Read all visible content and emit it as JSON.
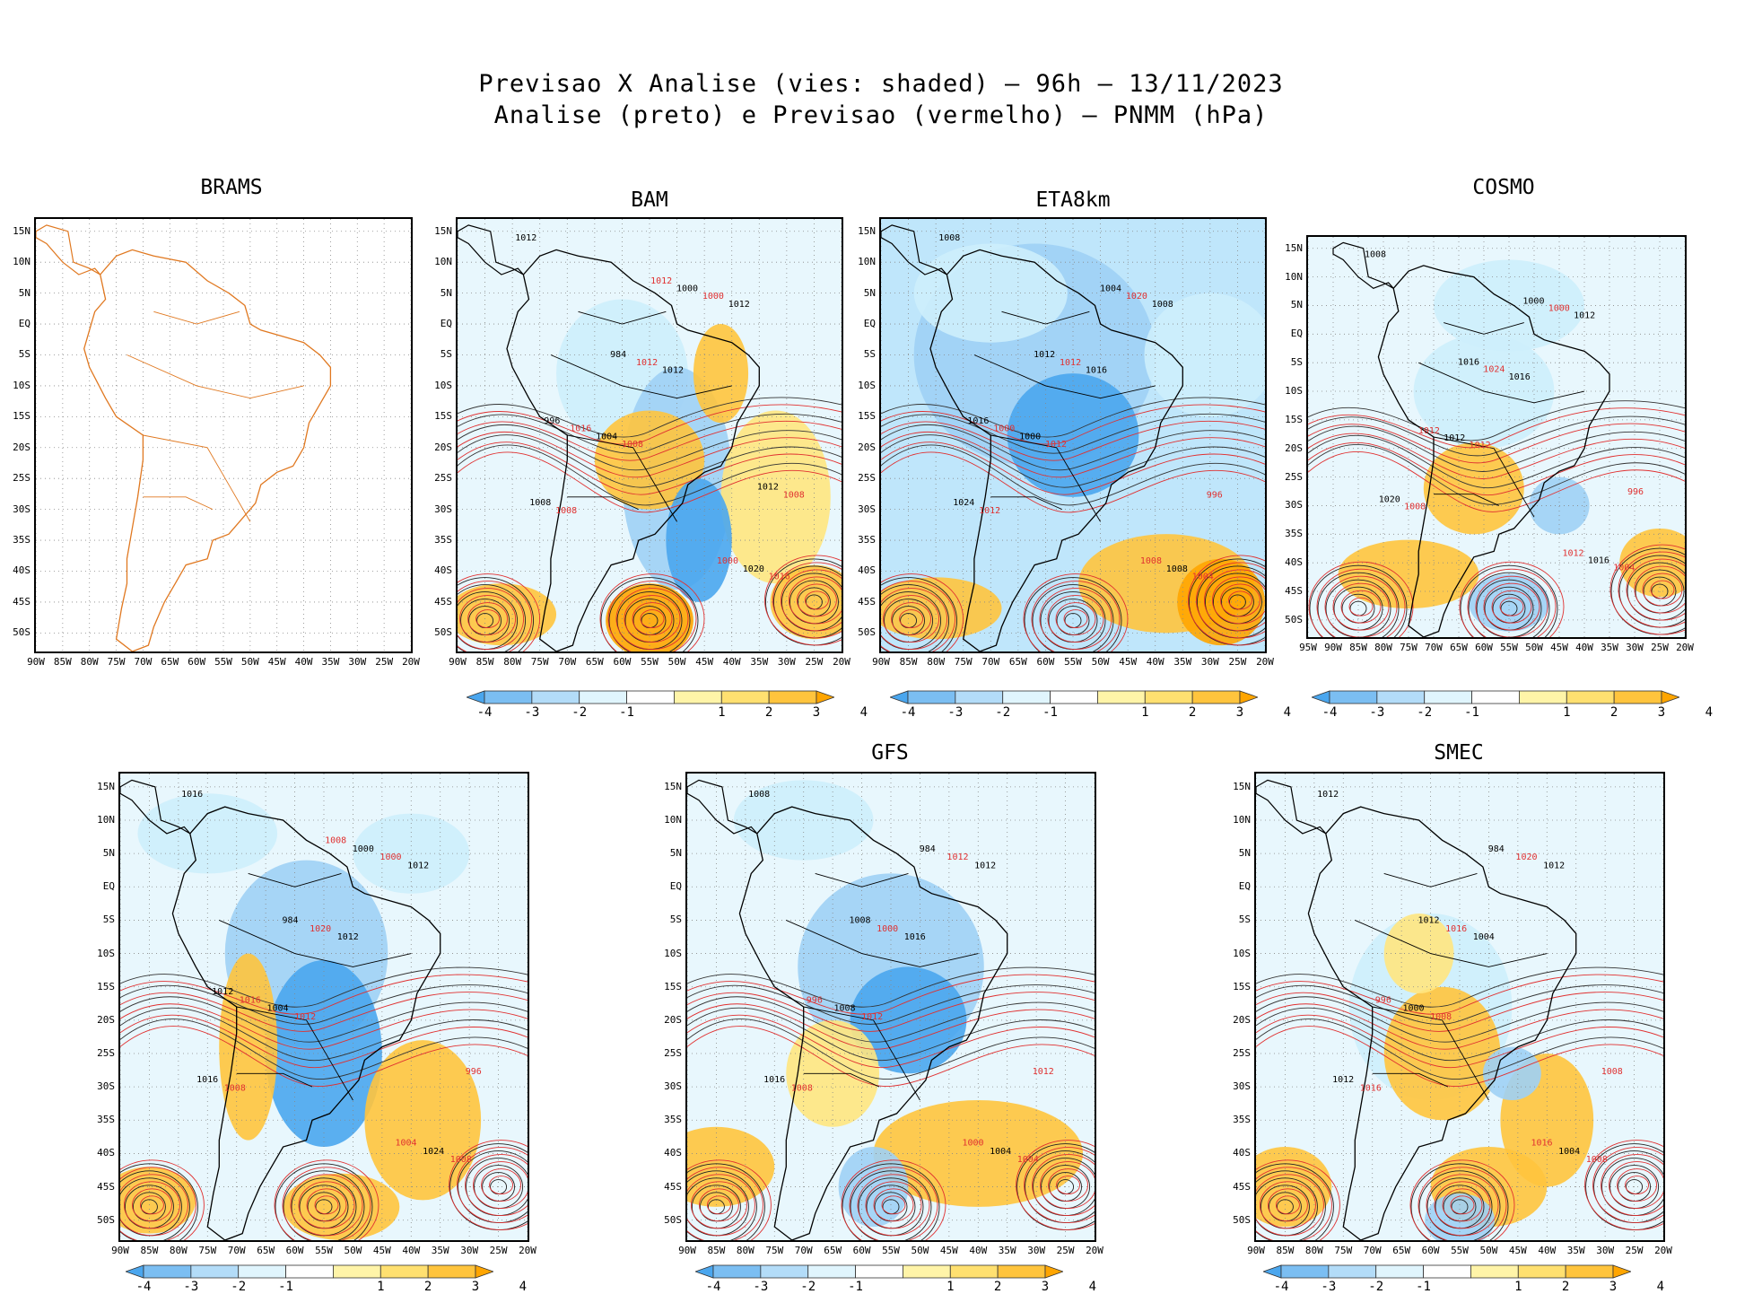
{
  "title": {
    "line1": "Previsao X Analise (vies: shaded) – 96h – 13/11/2023",
    "line2": "Analise (preto) e Previsao (vermelho) – PNMM (hPa)"
  },
  "colors": {
    "blue_dark": "#4aa6ee",
    "blue_mid": "#9fd0f5",
    "blue_light": "#cdeefc",
    "yellow_light": "#fff7b3",
    "yellow_mid": "#ffe680",
    "orange": "#ffc43d",
    "orange_dark": "#ffa500",
    "coast": "#000000",
    "forecast": "#e03030",
    "brams_coast": "#e07820"
  },
  "panels": [
    {
      "name": "BRAMS",
      "lat_labels": [
        "15N",
        "10N",
        "5N",
        "EQ",
        "5S",
        "10S",
        "15S",
        "20S",
        "25S",
        "30S",
        "35S",
        "40S",
        "45S",
        "50S"
      ],
      "lon_labels": [
        "90W",
        "85W",
        "80W",
        "75W",
        "70W",
        "65W",
        "60W",
        "55W",
        "50W",
        "45W",
        "40W",
        "35W",
        "30W",
        "25W",
        "20W"
      ],
      "colorbar": false
    },
    {
      "name": "BAM",
      "lat_labels": [
        "15N",
        "10N",
        "5N",
        "EQ",
        "5S",
        "10S",
        "15S",
        "20S",
        "25S",
        "30S",
        "35S",
        "40S",
        "45S",
        "50S"
      ],
      "lon_labels": [
        "90W",
        "85W",
        "80W",
        "75W",
        "70W",
        "65W",
        "60W",
        "55W",
        "50W",
        "45W",
        "40W",
        "35W",
        "30W",
        "25W",
        "20W"
      ],
      "colorbar": true,
      "contour_labels": [
        "1012",
        "1008",
        "1012",
        "1008",
        "1012",
        "1016",
        "1004",
        "1000",
        "1008",
        "1012",
        "1020",
        "1016",
        "1000",
        "1008",
        "984",
        "1000",
        "996",
        "1012",
        "1012"
      ]
    },
    {
      "name": "ETA8km",
      "lat_labels": [
        "15N",
        "10N",
        "5N",
        "EQ",
        "5S",
        "10S",
        "15S",
        "20S",
        "25S",
        "30S",
        "35S",
        "40S",
        "45S",
        "50S"
      ],
      "lon_labels": [
        "90W",
        "85W",
        "80W",
        "75W",
        "70W",
        "65W",
        "60W",
        "55W",
        "50W",
        "45W",
        "40W",
        "35W",
        "30W",
        "25W",
        "20W"
      ],
      "colorbar": true,
      "contour_labels": [
        "1008",
        "1012",
        "1008",
        "1012",
        "1016",
        "1004",
        "1000",
        "1020",
        "1024",
        "1012",
        "1008",
        "1000",
        "1004",
        "996",
        "1012",
        "1008",
        "1016"
      ]
    },
    {
      "name": "COSMO",
      "lat_labels": [
        "15N",
        "10N",
        "5N",
        "EQ",
        "5S",
        "10S",
        "15S",
        "20S",
        "25S",
        "30S",
        "35S",
        "40S",
        "45S",
        "50S"
      ],
      "lon_labels": [
        "95W",
        "90W",
        "85W",
        "80W",
        "75W",
        "70W",
        "65W",
        "60W",
        "55W",
        "50W",
        "45W",
        "40W",
        "35W",
        "30W",
        "25W",
        "20W"
      ],
      "colorbar": true,
      "contour_labels": [
        "1008",
        "1012",
        "1012",
        "1008",
        "1016",
        "1004",
        "1012",
        "1000",
        "1020",
        "1024",
        "1016",
        "1012",
        "1000",
        "996",
        "1016",
        "1012"
      ]
    },
    {
      "name": "",
      "lat_labels": [
        "15N",
        "10N",
        "5N",
        "EQ",
        "5S",
        "10S",
        "15S",
        "20S",
        "25S",
        "30S",
        "35S",
        "40S",
        "45S",
        "50S"
      ],
      "lon_labels": [
        "90W",
        "85W",
        "80W",
        "75W",
        "70W",
        "65W",
        "60W",
        "55W",
        "50W",
        "45W",
        "40W",
        "35W",
        "30W",
        "25W",
        "20W"
      ],
      "colorbar": true,
      "contour_labels": [
        "1016",
        "1012",
        "1012",
        "1008",
        "1012",
        "1008",
        "1004",
        "1000",
        "1016",
        "1020",
        "1024",
        "1016",
        "1000",
        "996",
        "984",
        "1004",
        "1012",
        "1008"
      ]
    },
    {
      "name": "GFS",
      "lat_labels": [
        "15N",
        "10N",
        "5N",
        "EQ",
        "5S",
        "10S",
        "15S",
        "20S",
        "25S",
        "30S",
        "35S",
        "40S",
        "45S",
        "50S"
      ],
      "lon_labels": [
        "90W",
        "85W",
        "80W",
        "75W",
        "70W",
        "65W",
        "60W",
        "55W",
        "50W",
        "45W",
        "40W",
        "35W",
        "30W",
        "25W",
        "20W"
      ],
      "colorbar": true,
      "contour_labels": [
        "1008",
        "1012",
        "1012",
        "1008",
        "1016",
        "1004",
        "1008",
        "1012",
        "1016",
        "1000",
        "1004",
        "996",
        "984",
        "1012",
        "1008",
        "1000"
      ]
    },
    {
      "name": "SMEC",
      "lat_labels": [
        "15N",
        "10N",
        "5N",
        "EQ",
        "5S",
        "10S",
        "15S",
        "20S",
        "25S",
        "30S",
        "35S",
        "40S",
        "45S",
        "50S"
      ],
      "lon_labels": [
        "90W",
        "85W",
        "80W",
        "75W",
        "70W",
        "65W",
        "60W",
        "55W",
        "50W",
        "45W",
        "40W",
        "35W",
        "30W",
        "25W",
        "20W"
      ],
      "colorbar": true,
      "contour_labels": [
        "1012",
        "1008",
        "1012",
        "1016",
        "1004",
        "1008",
        "1000",
        "1020",
        "1012",
        "1016",
        "1004",
        "996",
        "984",
        "1008",
        "1012",
        "1016"
      ]
    }
  ],
  "colorbar": {
    "labels": [
      "-4",
      "-3",
      "-2",
      "-1",
      "1",
      "2",
      "3",
      "4"
    ],
    "colors": [
      "#4aa6ee",
      "#7bbef2",
      "#b3dcf8",
      "#e0f5fd",
      "#ffffff",
      "#fff4a8",
      "#ffe070",
      "#ffc43d",
      "#ffa500"
    ]
  },
  "chart_data": {
    "type": "heatmap",
    "title": "Previsao X Analise (vies: shaded) – 96h – 13/11/2023",
    "subtitle": "Analise (preto) e Previsao (vermelho) – PNMM (hPa)",
    "models": [
      "BRAMS",
      "BAM",
      "ETA8km",
      "COSMO",
      "",
      "GFS",
      "SMEC"
    ],
    "bias_levels": [
      -4,
      -3,
      -2,
      -1,
      1,
      2,
      3,
      4
    ],
    "lat_range": [
      -53,
      17
    ],
    "lon_range": [
      -90,
      -20
    ],
    "units": "hPa"
  }
}
